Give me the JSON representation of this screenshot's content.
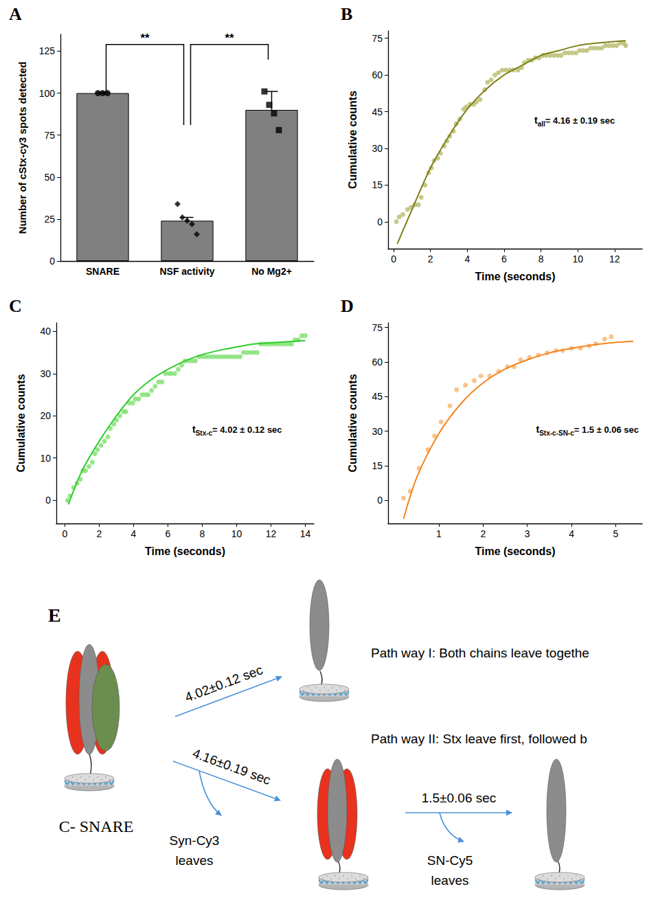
{
  "chart_data": [
    {
      "panel": "A",
      "type": "bar",
      "ylabel": "Number of cStx-cy3 spots detected",
      "categories": [
        "SNARE",
        "NSF activity",
        "No Mg2+"
      ],
      "values": [
        100,
        24,
        90
      ],
      "errors": [
        0.5,
        2,
        11
      ],
      "color": "#808080",
      "ylim": [
        0,
        135
      ],
      "yticks": [
        0,
        25,
        50,
        75,
        100,
        125
      ],
      "grid": false,
      "points": [
        {
          "category": "SNARE",
          "values": [
            100,
            100,
            100
          ],
          "marker": "circle"
        },
        {
          "category": "NSF activity",
          "values": [
            34,
            26,
            24,
            22,
            16
          ],
          "marker": "diamond"
        },
        {
          "category": "No Mg2+",
          "values": [
            101,
            93,
            88,
            78
          ],
          "marker": "square"
        }
      ],
      "annotations": [
        {
          "text": "**",
          "from": "SNARE",
          "to": "NSF activity",
          "y": 129,
          "y_ends": [
            101,
            81
          ]
        },
        {
          "text": "**",
          "from": "NSF activity",
          "to": "No Mg2+",
          "y": 129,
          "y_ends": [
            81,
            120
          ]
        }
      ]
    },
    {
      "panel": "B",
      "type": "scatter",
      "xlabel": "Time (seconds)",
      "ylabel": "Cumulative counts",
      "xlim": [
        -0.3,
        13.5
      ],
      "ylim": [
        -11,
        78
      ],
      "xticks": [
        0,
        2,
        4,
        6,
        8,
        10,
        12
      ],
      "yticks": [
        0,
        15,
        30,
        45,
        60,
        75
      ],
      "grid": false,
      "series": [
        {
          "type": "scatter",
          "color": "#b8bc6c",
          "x": [
            0.15,
            0.3,
            0.5,
            0.75,
            0.95,
            1.15,
            1.35,
            1.5,
            1.7,
            1.9,
            2.05,
            2.2,
            2.4,
            2.55,
            2.75,
            2.9,
            3.05,
            3.25,
            3.4,
            3.6,
            3.8,
            3.95,
            4.15,
            4.35,
            4.5,
            4.7,
            4.95,
            5.1,
            5.3,
            5.5,
            5.7,
            5.9,
            6.1,
            6.3,
            6.5,
            6.75,
            6.95,
            7.1,
            7.3,
            7.5,
            7.7,
            7.9,
            8.1,
            8.3,
            8.5,
            8.7,
            8.9,
            9.1,
            9.3,
            9.5,
            9.7,
            9.9,
            10.1,
            10.3,
            10.5,
            10.7,
            10.9,
            11.1,
            11.3,
            11.5,
            11.7,
            11.9,
            12.1,
            12.3,
            12.5,
            12.6
          ],
          "values": [
            0,
            2,
            3,
            5,
            6,
            7,
            7,
            10,
            15,
            20,
            22,
            25,
            26,
            28,
            31,
            33,
            35,
            37,
            40,
            42,
            46,
            47,
            48,
            48,
            49,
            50,
            54,
            57,
            58,
            60,
            61,
            62,
            62,
            62,
            62,
            62,
            63,
            65,
            66,
            66,
            67,
            67,
            68,
            68,
            68,
            68,
            68,
            68,
            69,
            69,
            69,
            69,
            70,
            70,
            70,
            71,
            71,
            71,
            71,
            72,
            72,
            72,
            72,
            73,
            73,
            72
          ]
        },
        {
          "type": "line",
          "color": "#7e7e18",
          "x": [
            0.2,
            1,
            2,
            3,
            4,
            5,
            6,
            7,
            8,
            9,
            10,
            11,
            12.6
          ],
          "values": [
            -9,
            5,
            22,
            35,
            46,
            54,
            60,
            64,
            68,
            70,
            72,
            73,
            74
          ]
        }
      ],
      "annotation": {
        "symbol": "t",
        "subscript": "all",
        "text": "= 4.16 ± 0.19 sec"
      }
    },
    {
      "panel": "C",
      "type": "scatter",
      "xlabel": "Time (seconds)",
      "ylabel": "Cumulative counts",
      "xlim": [
        -0.5,
        14.5
      ],
      "ylim": [
        -5.5,
        42
      ],
      "xticks": [
        0,
        2,
        4,
        6,
        8,
        10,
        12,
        14
      ],
      "yticks": [
        0,
        10,
        20,
        30,
        40
      ],
      "grid": false,
      "series": [
        {
          "type": "scatter",
          "color": "#7ee06e",
          "x": [
            0.15,
            0.3,
            0.5,
            0.7,
            0.9,
            1.05,
            1.2,
            1.4,
            1.6,
            1.75,
            1.9,
            2.1,
            2.3,
            2.5,
            2.65,
            2.85,
            3.0,
            3.2,
            3.4,
            3.55,
            3.75,
            3.95,
            4.1,
            4.3,
            4.5,
            4.7,
            4.85,
            5.05,
            5.25,
            5.45,
            5.65,
            5.85,
            6.05,
            6.2,
            6.4,
            6.6,
            6.8,
            7.0,
            7.2,
            7.4,
            7.6,
            7.8,
            8.0,
            8.2,
            8.4,
            8.6,
            8.8,
            9.0,
            9.2,
            9.4,
            9.6,
            9.8,
            10.0,
            10.2,
            10.4,
            10.6,
            10.8,
            11.0,
            11.2,
            11.4,
            11.6,
            11.8,
            12.0,
            12.2,
            12.4,
            12.6,
            12.8,
            13.0,
            13.2,
            13.4,
            13.6,
            13.8,
            14.0
          ],
          "values": [
            0,
            1,
            3,
            4,
            5,
            7,
            7,
            8,
            9,
            11,
            12,
            13,
            14,
            15,
            17,
            18,
            19,
            20,
            21,
            21,
            23,
            23,
            24,
            24,
            25,
            25,
            25,
            26,
            27,
            28,
            28,
            30,
            30,
            30,
            30,
            31,
            32,
            33,
            33,
            33,
            33,
            34,
            34,
            34,
            34,
            34,
            34,
            34,
            34,
            34,
            34,
            34,
            34,
            34,
            35,
            35,
            35,
            35,
            35,
            37,
            37,
            37,
            37,
            37,
            37,
            37,
            37,
            37,
            37,
            38,
            38,
            39,
            39
          ]
        },
        {
          "type": "line",
          "color": "#2ecc2e",
          "x": [
            0.2,
            1,
            2,
            3,
            4,
            5,
            6,
            7,
            8,
            9,
            10,
            11,
            12,
            14
          ],
          "values": [
            -1,
            7,
            14,
            20,
            25,
            28.5,
            31,
            33,
            34.5,
            35.5,
            36.3,
            37,
            37.3,
            37.8
          ]
        }
      ],
      "annotation": {
        "symbol": "t",
        "subscript": "Stx-c",
        "text": "= 4.02 ± 0.12 sec"
      }
    },
    {
      "panel": "D",
      "type": "scatter",
      "xlabel": "Time (seconds)",
      "ylabel": "Cumulative counts",
      "xlim": [
        -0.15,
        5.6
      ],
      "ylim": [
        -10,
        77
      ],
      "xticks": [
        1,
        2,
        3,
        4,
        5
      ],
      "yticks": [
        0,
        15,
        30,
        45,
        60,
        75
      ],
      "grid": false,
      "series": [
        {
          "type": "scatter",
          "color": "#f9b46c",
          "x": [
            0.2,
            0.35,
            0.55,
            0.75,
            0.9,
            1.05,
            1.25,
            1.4,
            1.6,
            1.8,
            1.95,
            2.15,
            2.35,
            2.55,
            2.7,
            2.85,
            3.05,
            3.25,
            3.45,
            3.65,
            3.8,
            4.0,
            4.2,
            4.4,
            4.55,
            4.75,
            4.9
          ],
          "values": [
            1,
            4,
            14,
            22,
            28,
            34,
            41,
            48,
            50,
            52,
            54,
            54,
            56,
            58,
            58,
            61,
            62,
            63,
            64,
            65,
            65,
            66,
            66,
            67,
            68,
            70,
            71
          ]
        },
        {
          "type": "line",
          "color": "#f5841f",
          "x": [
            0.2,
            0.5,
            1,
            1.5,
            2,
            2.5,
            3,
            3.5,
            4,
            4.5,
            5,
            5.4
          ],
          "values": [
            -8,
            10,
            29,
            42,
            51,
            57,
            61,
            64,
            66,
            67.5,
            68.5,
            69
          ]
        }
      ],
      "annotation": {
        "symbol": "t",
        "subscript": "Stx-c-SN-c",
        "text": "= 1.5 ± 0.06 sec"
      }
    }
  ],
  "diagram": {
    "panel": "E",
    "complex_label": "C- SNARE",
    "pathways": [
      "Path way I: Both chains leave togethe",
      "Path way II: Stx leave first, followed b"
    ],
    "arrows": [
      {
        "label": "4.02±0.12 sec"
      },
      {
        "label": "4.16±0.19 sec",
        "leaves": [
          "Syn-Cy3",
          "leaves"
        ]
      },
      {
        "label": "1.5±0.06 sec",
        "leaves": [
          "SN-Cy5",
          "leaves"
        ]
      }
    ]
  }
}
